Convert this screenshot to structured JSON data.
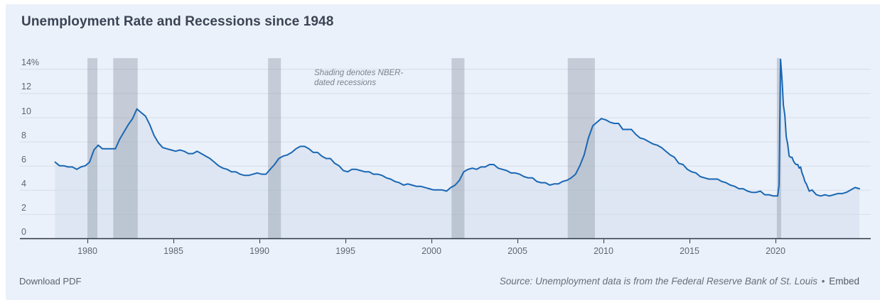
{
  "header": {
    "title": "Unemployment Rate and Recessions since 1948"
  },
  "footer": {
    "download_label": "Download PDF",
    "source_text": "Source: Unemployment data is from the Federal Reserve Bank of St. Louis",
    "separator": "•",
    "embed_label": "Embed"
  },
  "chart_data": {
    "type": "area",
    "title": "Unemployment Rate and Recessions since 1948",
    "series_name": "Unemployment rate",
    "units": "percent",
    "annotation": {
      "line1": "Shading denotes NBER-",
      "line2": "dated recessions"
    },
    "xlabel": "",
    "ylabel": "",
    "x_ticks": [
      1980,
      1985,
      1990,
      1995,
      2000,
      2005,
      2010,
      2015,
      2020
    ],
    "y_ticks": [
      0,
      2,
      4,
      6,
      8,
      10,
      12,
      14
    ],
    "y_tick_labels": [
      "0",
      "2",
      "4",
      "6",
      "8",
      "10",
      "12",
      "14%"
    ],
    "xlim": [
      1976.1,
      2025.6
    ],
    "ylim": [
      0,
      14.9
    ],
    "grid": "horizontal",
    "legend": "none",
    "series": {
      "quarterly": {
        "1978": [
          6.3,
          6.0,
          6.0,
          5.9
        ],
        "1979": [
          5.9,
          5.7,
          5.9,
          6.0
        ],
        "1980": [
          6.3,
          7.3,
          7.7,
          7.4
        ],
        "1981": [
          7.4,
          7.4,
          7.4,
          8.2
        ],
        "1982": [
          8.8,
          9.4,
          9.9,
          10.7
        ],
        "1983": [
          10.4,
          10.1,
          9.4,
          8.5
        ],
        "1984": [
          7.9,
          7.5,
          7.4,
          7.3
        ],
        "1985": [
          7.2,
          7.3,
          7.2,
          7.0
        ],
        "1986": [
          7.0,
          7.2,
          7.0,
          6.8
        ],
        "1987": [
          6.6,
          6.3,
          6.0,
          5.8
        ],
        "1988": [
          5.7,
          5.5,
          5.5,
          5.3
        ],
        "1989": [
          5.2,
          5.2,
          5.3,
          5.4
        ],
        "1990": [
          5.3,
          5.3,
          5.7,
          6.1
        ],
        "1991": [
          6.6,
          6.8,
          6.9,
          7.1
        ],
        "1992": [
          7.4,
          7.6,
          7.6,
          7.4
        ],
        "1993": [
          7.1,
          7.1,
          6.8,
          6.6
        ],
        "1994": [
          6.6,
          6.2,
          6.0,
          5.6
        ],
        "1995": [
          5.5,
          5.7,
          5.7,
          5.6
        ],
        "1996": [
          5.5,
          5.5,
          5.3,
          5.3
        ],
        "1997": [
          5.2,
          5.0,
          4.9,
          4.7
        ],
        "1998": [
          4.6,
          4.4,
          4.5,
          4.4
        ],
        "1999": [
          4.3,
          4.3,
          4.2,
          4.1
        ],
        "2000": [
          4.0,
          4.0,
          4.0,
          3.9
        ],
        "2001": [
          4.2,
          4.4,
          4.8,
          5.5
        ],
        "2002": [
          5.7,
          5.8,
          5.7,
          5.9
        ],
        "2003": [
          5.9,
          6.1,
          6.1,
          5.8
        ],
        "2004": [
          5.7,
          5.6,
          5.4,
          5.4
        ],
        "2005": [
          5.3,
          5.1,
          5.0,
          5.0
        ],
        "2006": [
          4.7,
          4.6,
          4.6,
          4.4
        ],
        "2007": [
          4.5,
          4.5,
          4.7,
          4.8
        ],
        "2008": [
          5.0,
          5.3,
          6.0,
          6.9
        ],
        "2009": [
          8.3,
          9.3,
          9.6,
          9.9
        ],
        "2010": [
          9.8,
          9.6,
          9.5,
          9.5
        ],
        "2011": [
          9.0,
          9.0,
          9.0,
          8.6
        ],
        "2012": [
          8.3,
          8.2,
          8.0,
          7.8
        ],
        "2013": [
          7.7,
          7.5,
          7.2,
          6.9
        ],
        "2014": [
          6.7,
          6.2,
          6.1,
          5.7
        ],
        "2015": [
          5.5,
          5.4,
          5.1,
          5.0
        ],
        "2016": [
          4.9,
          4.9,
          4.9,
          4.7
        ],
        "2017": [
          4.6,
          4.4,
          4.3,
          4.1
        ],
        "2018": [
          4.1,
          3.9,
          3.8,
          3.8
        ],
        "2019": [
          3.9,
          3.6,
          3.6,
          3.5
        ],
        "2022": [
          4.0,
          3.6,
          3.5,
          3.6
        ],
        "2023": [
          3.5,
          3.6,
          3.7,
          3.7
        ],
        "2024": [
          3.8,
          4.0,
          4.2,
          4.1
        ]
      },
      "monthly": {
        "2020": [
          3.5,
          3.5,
          4.4,
          14.8,
          13.2,
          11.0,
          10.2,
          8.4,
          7.8,
          6.8,
          6.7,
          6.7
        ],
        "2021": [
          6.4,
          6.2,
          6.1,
          6.1,
          5.8,
          5.9,
          5.4,
          5.1,
          4.7,
          4.5,
          4.2,
          3.9
        ]
      }
    },
    "recessions": [
      [
        1980.0,
        1980.58
      ],
      [
        1981.5,
        1982.92
      ],
      [
        1990.5,
        1991.25
      ],
      [
        2001.17,
        2001.92
      ],
      [
        2007.92,
        2009.5
      ],
      [
        2020.08,
        2020.33
      ]
    ],
    "colors": {
      "line": "#1a67b4",
      "fill": "rgba(209,221,235,0.55)",
      "recession_band": "rgba(125,136,152,0.35)",
      "gridline": "#d7dde7",
      "axis": "#2b3440",
      "background": "#ebf1fa",
      "title": "#3a4454",
      "axis_label": "#5c6774",
      "annotation": "#78828e"
    }
  }
}
